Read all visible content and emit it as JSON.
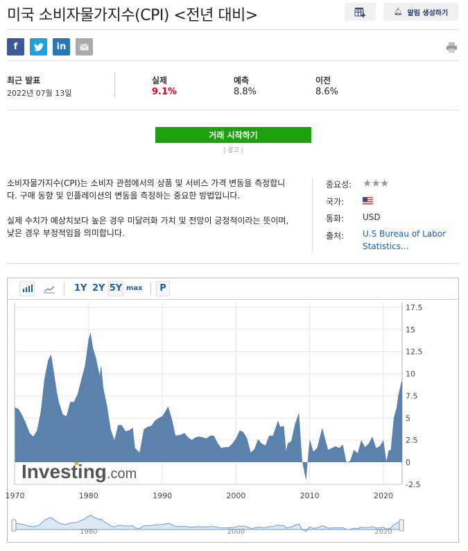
{
  "header": {
    "title": "미국 소비자물가지수(CPI) <전년 대비>",
    "alert_button": "알림 생성하기",
    "calendar_icon": "calendar-add-icon",
    "bell_icon": "bell-icon"
  },
  "share": {
    "icons": [
      "facebook-icon",
      "twitter-icon",
      "linkedin-icon",
      "email-icon",
      "print-icon"
    ],
    "facebook": "f",
    "linkedin": "in"
  },
  "release": {
    "latest_label": "최근 발표",
    "date": "2022년 07월 13일",
    "actual_label": "실제",
    "actual": "9.1%",
    "forecast_label": "예측",
    "forecast": "8.8%",
    "previous_label": "이전",
    "previous": "8.6%",
    "actual_color": "#e00020"
  },
  "cta": {
    "label": "거래 시작하기",
    "ad_label": "| 광고 |"
  },
  "description": {
    "p1": "소비자물가지수(CPI)는 소비자 관점에서의 상품 및 서비스 가격 변동을 측정합니다. 구매 동향 및 인플레이션의 변동을 측정하는 중요한 방법입니다.",
    "p2": "실제 수치가 예상치보다 높은 경우 미달러화 가치 및 전망이 긍정적이라는 뜻이며, 낮은 경우 부정적임을 의미합니다."
  },
  "meta": {
    "importance_label": "중요성:",
    "importance_stars": 3,
    "country_label": "국가:",
    "country": "US flag",
    "currency_label": "통화:",
    "currency": "USD",
    "source_label": "출처:",
    "source": "U.S Bureau of Labor Statistics..."
  },
  "toolbar": {
    "ranges": [
      "1Y",
      "2Y",
      "5Y",
      "max"
    ],
    "selected": "5Y",
    "p": "P"
  },
  "watermark": "Investing.com",
  "chart_data": {
    "type": "area",
    "ylim": [
      -2.5,
      17.5
    ],
    "xlim": [
      1970,
      2022.5
    ],
    "yticks": [
      "17.5",
      "15",
      "12.5",
      "10",
      "7.5",
      "5",
      "2.5",
      "0",
      "-2.5"
    ],
    "xticks": [
      "1970",
      "1980",
      "1990",
      "2000",
      "2010",
      "2020"
    ],
    "navigator_ticks": [
      "1980",
      "2000",
      "2020"
    ],
    "grid": true,
    "color": "#5b82ad",
    "points": [
      [
        1970,
        6.2
      ],
      [
        1970.5,
        6.0
      ],
      [
        1971,
        5.3
      ],
      [
        1971.5,
        4.4
      ],
      [
        1972,
        3.3
      ],
      [
        1972.5,
        2.9
      ],
      [
        1973,
        3.6
      ],
      [
        1973.5,
        5.7
      ],
      [
        1974,
        9.4
      ],
      [
        1974.5,
        11.5
      ],
      [
        1974.9,
        12.2
      ],
      [
        1975.3,
        10.2
      ],
      [
        1975.7,
        7.9
      ],
      [
        1976,
        6.7
      ],
      [
        1976.5,
        5.4
      ],
      [
        1977,
        5.2
      ],
      [
        1977.5,
        6.8
      ],
      [
        1978,
        6.8
      ],
      [
        1978.5,
        7.7
      ],
      [
        1979,
        9.3
      ],
      [
        1979.5,
        10.9
      ],
      [
        1980,
        13.9
      ],
      [
        1980.25,
        14.7
      ],
      [
        1980.6,
        12.9
      ],
      [
        1981,
        11.8
      ],
      [
        1981.5,
        9.8
      ],
      [
        1981.7,
        11.0
      ],
      [
        1982,
        8.4
      ],
      [
        1982.5,
        6.4
      ],
      [
        1983,
        3.7
      ],
      [
        1983.5,
        2.5
      ],
      [
        1984,
        4.2
      ],
      [
        1984.5,
        4.2
      ],
      [
        1985,
        3.5
      ],
      [
        1985.5,
        3.6
      ],
      [
        1986,
        3.9
      ],
      [
        1986.3,
        1.6
      ],
      [
        1986.9,
        1.1
      ],
      [
        1987,
        1.5
      ],
      [
        1987.5,
        3.7
      ],
      [
        1988,
        4.0
      ],
      [
        1988.5,
        4.1
      ],
      [
        1989,
        4.7
      ],
      [
        1989.5,
        5.0
      ],
      [
        1990,
        5.2
      ],
      [
        1990.8,
        6.3
      ],
      [
        1991.3,
        4.9
      ],
      [
        1991.8,
        3.0
      ],
      [
        1992.5,
        3.1
      ],
      [
        1993,
        3.3
      ],
      [
        1993.5,
        2.8
      ],
      [
        1994,
        2.5
      ],
      [
        1994.5,
        2.8
      ],
      [
        1995,
        2.9
      ],
      [
        1995.5,
        2.8
      ],
      [
        1996,
        2.7
      ],
      [
        1996.5,
        3.0
      ],
      [
        1997,
        3.0
      ],
      [
        1997.5,
        2.2
      ],
      [
        1998,
        1.6
      ],
      [
        1998.5,
        1.7
      ],
      [
        1999,
        1.7
      ],
      [
        1999.5,
        2.1
      ],
      [
        2000,
        2.7
      ],
      [
        2000.5,
        3.6
      ],
      [
        2001,
        3.4
      ],
      [
        2001.5,
        2.7
      ],
      [
        2002,
        1.1
      ],
      [
        2002.5,
        1.5
      ],
      [
        2003,
        2.6
      ],
      [
        2003.5,
        2.1
      ],
      [
        2004,
        1.9
      ],
      [
        2004.5,
        3.0
      ],
      [
        2005,
        3.0
      ],
      [
        2005.7,
        4.7
      ],
      [
        2006,
        4.0
      ],
      [
        2006.5,
        4.1
      ],
      [
        2006.8,
        1.3
      ],
      [
        2007,
        2.1
      ],
      [
        2007.5,
        2.4
      ],
      [
        2008,
        4.3
      ],
      [
        2008.55,
        5.6
      ],
      [
        2008.9,
        1.1
      ],
      [
        2009,
        0.0
      ],
      [
        2009.5,
        -2.1
      ],
      [
        2009.9,
        1.8
      ],
      [
        2010,
        2.6
      ],
      [
        2010.5,
        1.2
      ],
      [
        2011,
        1.6
      ],
      [
        2011.7,
        3.9
      ],
      [
        2012,
        2.9
      ],
      [
        2012.5,
        1.4
      ],
      [
        2013,
        1.6
      ],
      [
        2013.5,
        1.8
      ],
      [
        2014,
        1.6
      ],
      [
        2014.5,
        2.0
      ],
      [
        2015,
        -0.1
      ],
      [
        2015.5,
        0.2
      ],
      [
        2016,
        1.4
      ],
      [
        2016.5,
        1.0
      ],
      [
        2017,
        2.5
      ],
      [
        2017.5,
        1.7
      ],
      [
        2018,
        2.1
      ],
      [
        2018.5,
        2.9
      ],
      [
        2019,
        1.6
      ],
      [
        2019.5,
        1.8
      ],
      [
        2020,
        2.5
      ],
      [
        2020.4,
        0.1
      ],
      [
        2020.7,
        1.3
      ],
      [
        2021,
        1.4
      ],
      [
        2021.4,
        5.0
      ],
      [
        2021.8,
        6.2
      ],
      [
        2022,
        7.5
      ],
      [
        2022.45,
        9.1
      ]
    ]
  }
}
